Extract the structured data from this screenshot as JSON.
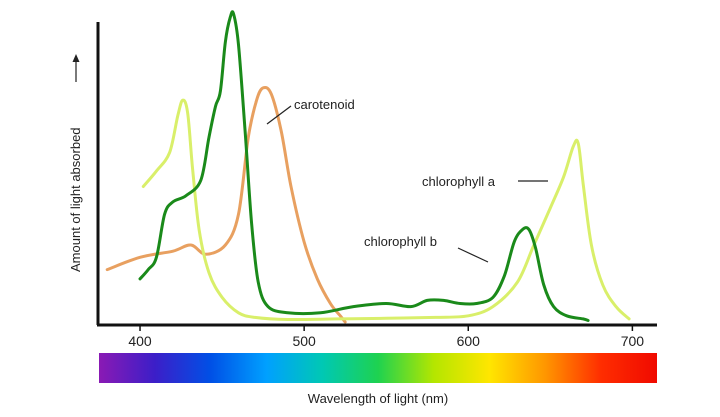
{
  "chart_data": {
    "type": "line",
    "xlabel": "Wavelength of light (nm)",
    "ylabel": "Amount of light absorbed",
    "xlim": [
      375,
      715
    ],
    "ylim": [
      0,
      1
    ],
    "x_ticks": [
      "400",
      "500",
      "600",
      "700"
    ],
    "grid": false,
    "legend": "none",
    "series": [
      {
        "name": "chlorophyll a",
        "color": "#d9ef6a",
        "points": [
          [
            402,
            0.44
          ],
          [
            410,
            0.49
          ],
          [
            418,
            0.55
          ],
          [
            423,
            0.67
          ],
          [
            426,
            0.72
          ],
          [
            429,
            0.68
          ],
          [
            432,
            0.5
          ],
          [
            436,
            0.3
          ],
          [
            442,
            0.16
          ],
          [
            450,
            0.08
          ],
          [
            460,
            0.03
          ],
          [
            470,
            0.015
          ],
          [
            490,
            0.008
          ],
          [
            520,
            0.01
          ],
          [
            550,
            0.012
          ],
          [
            580,
            0.015
          ],
          [
            600,
            0.02
          ],
          [
            615,
            0.05
          ],
          [
            630,
            0.13
          ],
          [
            640,
            0.25
          ],
          [
            650,
            0.37
          ],
          [
            658,
            0.47
          ],
          [
            664,
            0.57
          ],
          [
            667,
            0.58
          ],
          [
            670,
            0.45
          ],
          [
            675,
            0.25
          ],
          [
            682,
            0.12
          ],
          [
            690,
            0.05
          ],
          [
            698,
            0.01
          ]
        ]
      },
      {
        "name": "chlorophyll b",
        "color": "#1a8a1a",
        "points": [
          [
            400,
            0.14
          ],
          [
            405,
            0.17
          ],
          [
            410,
            0.21
          ],
          [
            415,
            0.35
          ],
          [
            420,
            0.39
          ],
          [
            428,
            0.41
          ],
          [
            437,
            0.46
          ],
          [
            442,
            0.6
          ],
          [
            446,
            0.7
          ],
          [
            449,
            0.75
          ],
          [
            452,
            0.91
          ],
          [
            455,
            0.99
          ],
          [
            457,
            1.0
          ],
          [
            460,
            0.9
          ],
          [
            464,
            0.62
          ],
          [
            468,
            0.32
          ],
          [
            472,
            0.13
          ],
          [
            478,
            0.05
          ],
          [
            490,
            0.03
          ],
          [
            510,
            0.03
          ],
          [
            530,
            0.05
          ],
          [
            550,
            0.06
          ],
          [
            565,
            0.05
          ],
          [
            575,
            0.07
          ],
          [
            585,
            0.07
          ],
          [
            595,
            0.06
          ],
          [
            605,
            0.06
          ],
          [
            615,
            0.08
          ],
          [
            622,
            0.15
          ],
          [
            628,
            0.26
          ],
          [
            633,
            0.3
          ],
          [
            637,
            0.3
          ],
          [
            641,
            0.24
          ],
          [
            646,
            0.12
          ],
          [
            652,
            0.05
          ],
          [
            660,
            0.02
          ],
          [
            670,
            0.01
          ],
          [
            673,
            0.005
          ]
        ]
      },
      {
        "name": "carotenoid",
        "color": "#e8a060",
        "points": [
          [
            380,
            0.17
          ],
          [
            400,
            0.21
          ],
          [
            420,
            0.23
          ],
          [
            431,
            0.25
          ],
          [
            440,
            0.22
          ],
          [
            452,
            0.25
          ],
          [
            460,
            0.35
          ],
          [
            466,
            0.6
          ],
          [
            471,
            0.72
          ],
          [
            475,
            0.76
          ],
          [
            480,
            0.74
          ],
          [
            486,
            0.62
          ],
          [
            492,
            0.44
          ],
          [
            500,
            0.26
          ],
          [
            508,
            0.14
          ],
          [
            516,
            0.06
          ],
          [
            522,
            0.02
          ],
          [
            525,
            0.0
          ]
        ]
      }
    ],
    "annotations": [
      {
        "text": "carotenoid"
      },
      {
        "text": "chlorophyll a"
      },
      {
        "text": "chlorophyll b"
      }
    ],
    "spectrum_colors": [
      "#8a1ab4",
      "#3c1ec8",
      "#0050e6",
      "#00a0ff",
      "#00c8b4",
      "#1ed250",
      "#b4e600",
      "#ffe600",
      "#ff9600",
      "#ff2d00",
      "#f00a00"
    ]
  }
}
